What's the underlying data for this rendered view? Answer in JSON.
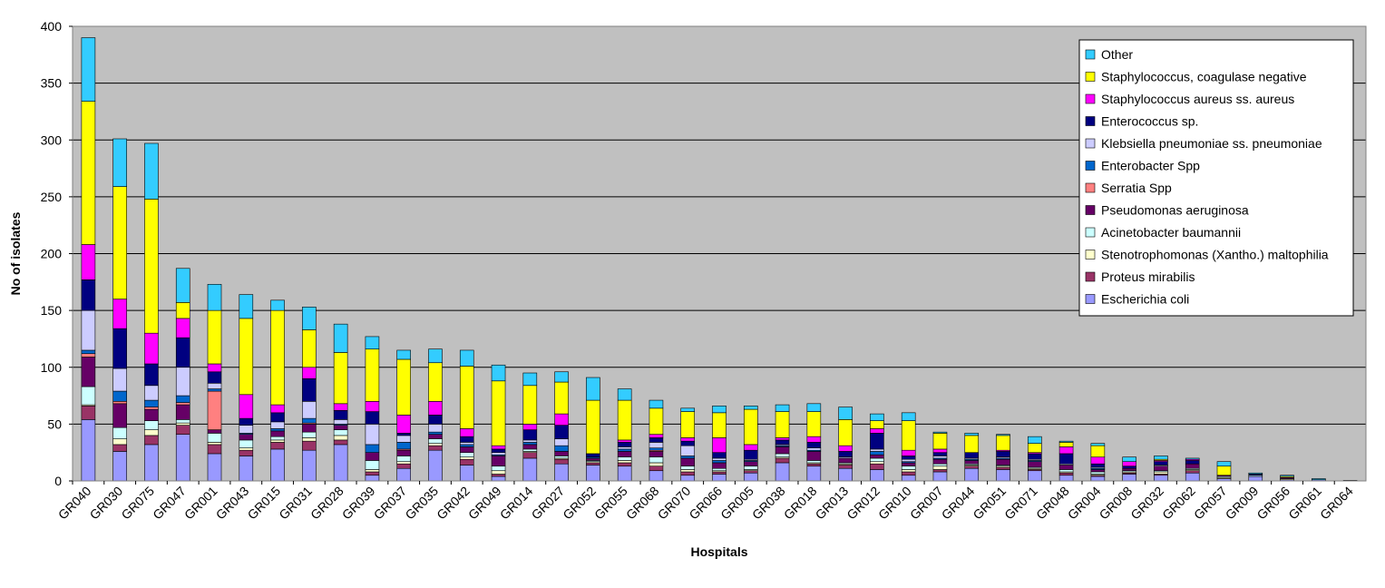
{
  "chart_data": {
    "type": "bar",
    "stacked": true,
    "title": "",
    "xlabel": "Hospitals",
    "ylabel": "No of isolates",
    "ylim": [
      0,
      400
    ],
    "yticks": [
      0,
      50,
      100,
      150,
      200,
      250,
      300,
      350,
      400
    ],
    "grid": true,
    "legend_position": "top-right",
    "categories": [
      "GR040",
      "GR030",
      "GR075",
      "GR047",
      "GR001",
      "GR043",
      "GR015",
      "GR031",
      "GR028",
      "GR039",
      "GR037",
      "GR035",
      "GR042",
      "GR049",
      "GR014",
      "GR027",
      "GR052",
      "GR055",
      "GR068",
      "GR070",
      "GR066",
      "GR005",
      "GR038",
      "GR018",
      "GR013",
      "GR012",
      "GR010",
      "GR007",
      "GR044",
      "GR051",
      "GR071",
      "GR048",
      "GR004",
      "GR008",
      "GR032",
      "GR062",
      "GR057",
      "GR009",
      "GR056",
      "GR061",
      "GR064"
    ],
    "series": [
      {
        "name": "Escherichia coli",
        "color": "#9999FF",
        "values": [
          54,
          26,
          32,
          41,
          24,
          22,
          28,
          27,
          32,
          5,
          11,
          27,
          14,
          4,
          20,
          15,
          14,
          13,
          9,
          5,
          6,
          7,
          16,
          13,
          11,
          10,
          5,
          8,
          11,
          10,
          9,
          5,
          4,
          6,
          5,
          7,
          2,
          4,
          1,
          1,
          0.5
        ]
      },
      {
        "name": "Proteus mirabilis",
        "color": "#993366",
        "values": [
          12,
          6,
          8,
          8,
          8,
          5,
          6,
          8,
          4,
          3,
          4,
          4,
          5,
          2,
          5,
          4,
          2,
          3,
          4,
          3,
          2,
          2,
          4,
          2,
          3,
          5,
          3,
          2,
          2,
          2,
          1,
          2,
          1,
          1,
          1,
          2,
          0,
          0,
          0,
          0,
          0
        ]
      },
      {
        "name": "Stenotrophomonas (Xantho.) maltophilia",
        "color": "#FFFFCC",
        "values": [
          1,
          5,
          5,
          2,
          2,
          2,
          2,
          3,
          4,
          2,
          2,
          2,
          2,
          3,
          1,
          1,
          1,
          2,
          3,
          2,
          1,
          1,
          1,
          1,
          1,
          2,
          2,
          3,
          1,
          1,
          1,
          1,
          1,
          1,
          2,
          1,
          1,
          0,
          1,
          0,
          0
        ]
      },
      {
        "name": "Acinetobacter baumannii",
        "color": "#CCFFFF",
        "values": [
          16,
          10,
          8,
          3,
          8,
          7,
          3,
          5,
          5,
          8,
          5,
          4,
          4,
          4,
          2,
          2,
          1,
          3,
          5,
          3,
          2,
          3,
          3,
          2,
          1,
          3,
          3,
          2,
          1,
          1,
          1,
          2,
          2,
          1,
          1,
          1,
          1,
          1,
          0,
          0,
          0
        ]
      },
      {
        "name": "Pseudomonas aeruginosa",
        "color": "#660066",
        "values": [
          26,
          21,
          10,
          13,
          3,
          5,
          5,
          7,
          4,
          7,
          5,
          4,
          5,
          9,
          4,
          4,
          2,
          5,
          5,
          7,
          5,
          4,
          6,
          8,
          4,
          3,
          3,
          4,
          3,
          5,
          5,
          4,
          2,
          2,
          4,
          4,
          1,
          0,
          1,
          0,
          0
        ]
      },
      {
        "name": "Serratia Spp",
        "color": "#FF8080",
        "values": [
          3,
          2,
          2,
          2,
          34,
          0,
          0,
          1,
          0,
          0,
          1,
          0,
          0,
          0,
          0,
          0,
          0,
          0,
          1,
          0,
          0,
          0,
          0,
          0,
          0,
          0,
          0,
          0,
          0,
          0,
          0,
          0,
          0,
          0,
          0,
          0,
          0,
          0,
          0,
          0,
          0
        ]
      },
      {
        "name": "Enterobacter Spp",
        "color": "#0066CC",
        "values": [
          3,
          9,
          6,
          6,
          2,
          1,
          2,
          4,
          1,
          7,
          6,
          2,
          2,
          1,
          2,
          5,
          1,
          2,
          2,
          2,
          2,
          1,
          1,
          1,
          0,
          3,
          1,
          1,
          1,
          1,
          1,
          0,
          1,
          0,
          0,
          0,
          0,
          0,
          0,
          0,
          0
        ]
      },
      {
        "name": "Klebsiella pneumoniae ss. pneumoniae",
        "color": "#CCCCFF",
        "values": [
          35,
          20,
          13,
          25,
          5,
          7,
          6,
          15,
          4,
          18,
          6,
          7,
          2,
          2,
          2,
          6,
          0,
          2,
          5,
          9,
          2,
          1,
          1,
          2,
          1,
          2,
          2,
          2,
          1,
          1,
          1,
          1,
          1,
          0,
          1,
          0,
          0,
          0,
          0,
          0,
          0
        ]
      },
      {
        "name": "Enterococcus sp.",
        "color": "#000080",
        "values": [
          27,
          35,
          19,
          26,
          10,
          6,
          8,
          20,
          8,
          11,
          2,
          8,
          5,
          3,
          9,
          12,
          3,
          4,
          4,
          4,
          5,
          8,
          4,
          5,
          5,
          14,
          3,
          3,
          5,
          5,
          5,
          9,
          3,
          2,
          3,
          3,
          0,
          1,
          0,
          0,
          0
        ]
      },
      {
        "name": "Staphylococcus aureus ss. aureus",
        "color": "#FF00FF",
        "values": [
          31,
          26,
          27,
          17,
          7,
          21,
          7,
          10,
          6,
          9,
          16,
          12,
          7,
          3,
          5,
          10,
          0,
          2,
          3,
          3,
          13,
          5,
          2,
          5,
          5,
          4,
          5,
          3,
          0,
          1,
          1,
          6,
          6,
          4,
          1,
          1,
          0,
          0,
          0,
          0,
          0
        ]
      },
      {
        "name": "Staphylococcus, coagulase negative",
        "color": "#FFFF00",
        "values": [
          126,
          99,
          118,
          14,
          47,
          67,
          83,
          33,
          45,
          46,
          49,
          34,
          55,
          57,
          34,
          28,
          47,
          35,
          23,
          23,
          22,
          31,
          23,
          22,
          23,
          7,
          26,
          14,
          15,
          13,
          8,
          4,
          10,
          0,
          1,
          0,
          8,
          0,
          1,
          0,
          0
        ]
      },
      {
        "name": "Other",
        "color": "#33CCFF",
        "values": [
          56,
          42,
          49,
          30,
          23,
          21,
          9,
          20,
          25,
          11,
          8,
          12,
          14,
          14,
          11,
          9,
          20,
          10,
          7,
          3,
          6,
          3,
          6,
          7,
          11,
          6,
          7,
          1,
          2,
          1,
          6,
          1,
          2,
          4,
          3,
          1,
          4,
          1,
          1,
          1,
          0
        ]
      }
    ]
  }
}
